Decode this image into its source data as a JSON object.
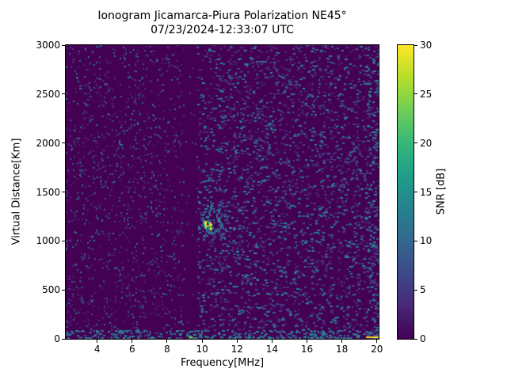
{
  "chart_data": {
    "type": "heatmap",
    "title": "Ionogram Jicamarca-Piura Polarization NE45°",
    "subtitle": "07/23/2024-12:33:07 UTC",
    "xlabel": "Frequency[MHz]",
    "ylabel": "Virtual Distance[Km]",
    "xlim": [
      2.2,
      20.1
    ],
    "ylim": [
      0,
      3000
    ],
    "x_ticks": [
      4,
      6,
      8,
      10,
      12,
      14,
      16,
      18,
      20
    ],
    "y_ticks": [
      0,
      500,
      1000,
      1500,
      2000,
      2500,
      3000
    ],
    "grid": false,
    "colormap": "viridis",
    "colormap_stops": [
      "#440154",
      "#482878",
      "#3e4989",
      "#31688e",
      "#26828e",
      "#1f9e89",
      "#35b779",
      "#6ece58",
      "#b5de2b",
      "#fde725"
    ],
    "colorbar": {
      "label": "SNR [dB]",
      "ticks": [
        0,
        5,
        10,
        15,
        20,
        25,
        30
      ],
      "range": [
        0,
        30
      ],
      "position": "right"
    },
    "background_snr": 0,
    "noise": {
      "seed": 7,
      "regions": [
        {
          "name": "low-band-speckle",
          "f": [
            2.2,
            8.95
          ],
          "km": [
            0,
            3000
          ],
          "count": 780,
          "snr": [
            3,
            13
          ],
          "w": [
            2,
            2
          ],
          "h": 2
        },
        {
          "name": "low-band-faint",
          "f": [
            2.2,
            8.95
          ],
          "km": [
            0,
            3000
          ],
          "count": 500,
          "snr": [
            2,
            4
          ],
          "w": [
            2,
            2
          ],
          "h": 2
        },
        {
          "name": "quiet-band",
          "f": [
            8.98,
            9.68
          ],
          "km": [
            0,
            3000
          ],
          "count": 16,
          "snr": [
            3,
            9
          ],
          "w": [
            2,
            2
          ],
          "h": 2
        },
        {
          "name": "high-band-faint",
          "f": [
            9.7,
            20.1
          ],
          "km": [
            0,
            3000
          ],
          "count": 1700,
          "snr": [
            2,
            6
          ],
          "w": [
            2,
            4
          ],
          "h": 2
        },
        {
          "name": "high-band-speckle",
          "f": [
            9.7,
            20.1
          ],
          "km": [
            0,
            3000
          ],
          "count": 1250,
          "snr": [
            6,
            15
          ],
          "w": [
            2,
            4
          ],
          "h": 2
        },
        {
          "name": "right-edge-band",
          "f": [
            19.35,
            20.1
          ],
          "km": [
            0,
            3000
          ],
          "count": 130,
          "snr": [
            7,
            16
          ],
          "w": [
            2,
            4
          ],
          "h": 2
        },
        {
          "name": "bottom-rows",
          "f": [
            2.2,
            20.1
          ],
          "km": [
            0,
            90
          ],
          "count": 240,
          "snr": [
            7,
            16
          ],
          "w": [
            2,
            4
          ],
          "h": 2
        },
        {
          "name": "echo-halo",
          "f": [
            9.9,
            11.45
          ],
          "km": [
            1040,
            1270
          ],
          "count": 45,
          "snr": [
            5,
            12
          ],
          "w": [
            2,
            3
          ],
          "h": 2
        },
        {
          "name": "echo-halo-upper",
          "f": [
            10.3,
            11.15
          ],
          "km": [
            1270,
            1400
          ],
          "count": 18,
          "snr": [
            5,
            11
          ],
          "w": [
            2,
            3
          ],
          "h": 2
        }
      ]
    },
    "echo_points": [
      [
        10.21,
        1192,
        29
      ],
      [
        10.21,
        1176,
        30
      ],
      [
        10.22,
        1160,
        30
      ],
      [
        10.24,
        1146,
        28
      ],
      [
        10.49,
        1178,
        30
      ],
      [
        10.51,
        1162,
        30
      ],
      [
        10.52,
        1146,
        29
      ],
      [
        10.5,
        1130,
        27
      ],
      [
        10.15,
        1200,
        20
      ],
      [
        10.13,
        1182,
        18
      ],
      [
        10.17,
        1160,
        19
      ],
      [
        10.28,
        1140,
        22
      ],
      [
        10.36,
        1150,
        24
      ],
      [
        10.42,
        1188,
        21
      ],
      [
        10.57,
        1150,
        18
      ],
      [
        10.6,
        1132,
        17
      ],
      [
        10.44,
        1118,
        19
      ],
      [
        10.31,
        1124,
        18
      ],
      [
        10.56,
        1362,
        12
      ],
      [
        10.53,
        1344,
        13
      ],
      [
        10.5,
        1324,
        12
      ],
      [
        10.46,
        1300,
        11
      ],
      [
        10.44,
        1282,
        10
      ],
      [
        10.47,
        1264,
        9
      ],
      [
        11.05,
        1322,
        10
      ],
      [
        11.01,
        1304,
        12
      ],
      [
        10.96,
        1286,
        13
      ],
      [
        10.9,
        1264,
        12
      ],
      [
        10.86,
        1244,
        11
      ],
      [
        10.95,
        1226,
        17
      ],
      [
        11.0,
        1208,
        18
      ],
      [
        11.06,
        1190,
        14
      ],
      [
        9.85,
        1142,
        10
      ],
      [
        9.82,
        1118,
        11
      ],
      [
        9.94,
        1128,
        10
      ],
      [
        10.03,
        1162,
        9
      ],
      [
        10.3,
        1104,
        12
      ],
      [
        10.39,
        1090,
        13
      ],
      [
        10.48,
        1080,
        12
      ],
      [
        10.57,
        1088,
        11
      ],
      [
        10.66,
        1076,
        10
      ],
      [
        10.76,
        1090,
        11
      ],
      [
        10.85,
        1106,
        12
      ],
      [
        10.94,
        1120,
        10
      ],
      [
        11.12,
        1156,
        10
      ],
      [
        11.26,
        1132,
        9
      ],
      [
        11.39,
        1116,
        10
      ],
      [
        11.21,
        1172,
        9
      ],
      [
        11.32,
        1262,
        8
      ],
      [
        11.45,
        1240,
        8
      ]
    ],
    "bottom_artifacts": [
      [
        9.35,
        26,
        3
      ],
      [
        10.25,
        14,
        4
      ],
      [
        10.55,
        12,
        3
      ],
      [
        11.05,
        14,
        4
      ],
      [
        11.6,
        11,
        3
      ],
      [
        12.1,
        18,
        4
      ],
      [
        12.9,
        12,
        3
      ],
      [
        13.8,
        13,
        3
      ],
      [
        14.9,
        12,
        3
      ],
      [
        16.3,
        11,
        3
      ],
      [
        17.4,
        10,
        3
      ],
      [
        19.38,
        29,
        5
      ],
      [
        19.5,
        30,
        4
      ],
      [
        19.65,
        28,
        4
      ],
      [
        19.78,
        30,
        5
      ],
      [
        19.92,
        29,
        4
      ]
    ]
  }
}
